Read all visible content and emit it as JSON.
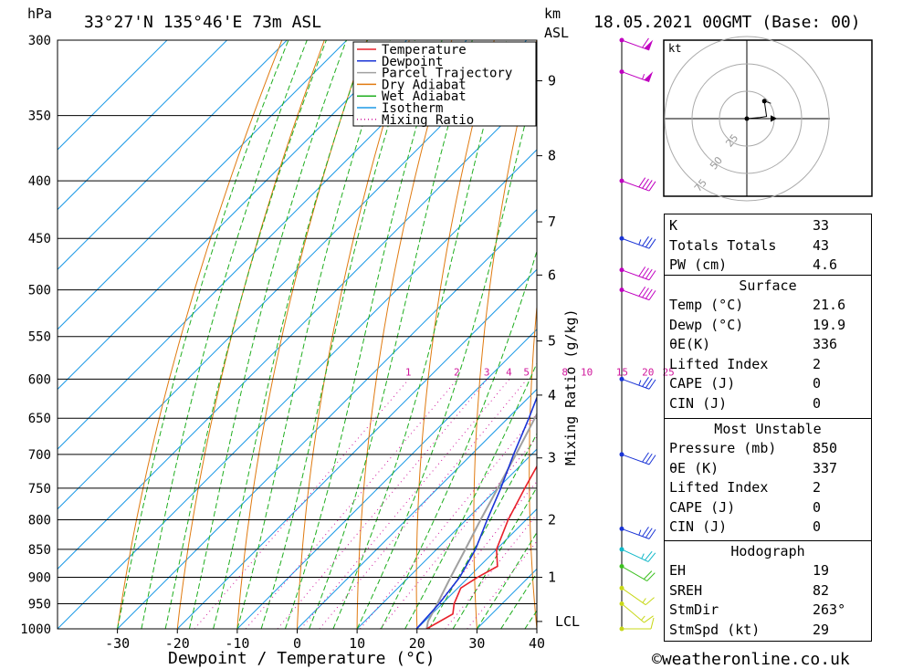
{
  "header": {
    "location": "33°27'N 135°46'E 73m ASL",
    "datetime": "18.05.2021 00GMT (Base: 00)",
    "hpa_label": "hPa",
    "km_label": "km",
    "asl_label": "ASL"
  },
  "footer": {
    "credit": "©weatheronline.co.uk"
  },
  "colors": {
    "temperature": "#e8202a",
    "dewpoint": "#1a34d6",
    "parcel": "#a0a0a0",
    "dry_adiabat": "#e07a10",
    "wet_adiabat": "#1fae1f",
    "isotherm": "#1d9ae6",
    "mixing_ratio": "#d0189c",
    "wind_magenta": "#c000c0",
    "wind_blue": "#1a34d6",
    "wind_cyan": "#10b8c8",
    "wind_green": "#3cc020",
    "wind_yellow": "#c8d818"
  },
  "chart_data": {
    "type": "line",
    "title": "",
    "xlabel": "Dewpoint / Temperature (°C)",
    "ylabel": "hPa",
    "right_axis_label": "Mixing Ratio (g/kg)",
    "xlim": [
      -40,
      40
    ],
    "ylim": [
      1000,
      300
    ],
    "x_ticks": [
      -30,
      -20,
      -10,
      0,
      10,
      20,
      30,
      40
    ],
    "pressure_levels": [
      300,
      350,
      400,
      450,
      500,
      550,
      600,
      650,
      700,
      750,
      800,
      850,
      900,
      950,
      1000
    ],
    "height_km_ticks": [
      {
        "label": "9",
        "p": 326
      },
      {
        "label": "8",
        "p": 380
      },
      {
        "label": "7",
        "p": 435
      },
      {
        "label": "6",
        "p": 485
      },
      {
        "label": "5",
        "p": 555
      },
      {
        "label": "4",
        "p": 620
      },
      {
        "label": "3",
        "p": 705
      },
      {
        "label": "2",
        "p": 800
      },
      {
        "label": "1",
        "p": 900
      },
      {
        "label": "LCL",
        "p": 985
      }
    ],
    "mixing_ratio_labels": [
      "1",
      "2",
      "3",
      "4",
      "5",
      "8",
      "10",
      "15",
      "20",
      "25"
    ],
    "mixing_ratio_values": [
      1,
      2,
      3,
      4,
      5,
      8,
      10,
      15,
      20,
      25
    ],
    "legend": [
      "Temperature",
      "Dewpoint",
      "Parcel Trajectory",
      "Dry Adiabat",
      "Wet Adiabat",
      "Isotherm",
      "Mixing Ratio"
    ],
    "series": [
      {
        "name": "Temperature",
        "points": [
          [
            1000,
            21.6
          ],
          [
            970,
            23.5
          ],
          [
            950,
            22
          ],
          [
            920,
            20.5
          ],
          [
            900,
            21.5
          ],
          [
            880,
            23
          ],
          [
            850,
            20
          ],
          [
            800,
            17
          ],
          [
            750,
            14.5
          ],
          [
            700,
            12
          ],
          [
            650,
            8.5
          ],
          [
            600,
            5
          ],
          [
            550,
            1
          ],
          [
            525,
            -1.5
          ],
          [
            500,
            -3.5
          ],
          [
            470,
            -5
          ],
          [
            455,
            -4.5
          ],
          [
            425,
            -8
          ],
          [
            400,
            -11.5
          ],
          [
            350,
            -20
          ],
          [
            300,
            -28
          ]
        ]
      },
      {
        "name": "Dewpoint",
        "points": [
          [
            1000,
            19.9
          ],
          [
            950,
            19.5
          ],
          [
            900,
            18.5
          ],
          [
            850,
            16.5
          ],
          [
            800,
            13.5
          ],
          [
            750,
            10.5
          ],
          [
            700,
            7
          ],
          [
            650,
            3.5
          ],
          [
            600,
            -0.5
          ],
          [
            550,
            -5.5
          ],
          [
            548,
            -8
          ],
          [
            540,
            -6.5
          ],
          [
            520,
            -8
          ],
          [
            515,
            -11
          ],
          [
            505,
            -14
          ],
          [
            498,
            -12
          ],
          [
            490,
            -8
          ],
          [
            487,
            -12
          ],
          [
            478,
            -13
          ],
          [
            470,
            -10
          ],
          [
            455,
            -24
          ],
          [
            400,
            -15
          ],
          [
            350,
            -4
          ],
          [
            342,
            -5
          ],
          [
            340,
            -9
          ],
          [
            320,
            -4
          ],
          [
            300,
            -12
          ]
        ]
      },
      {
        "name": "Parcel Trajectory",
        "points": [
          [
            1000,
            21.6
          ],
          [
            985,
            20.6
          ],
          [
            950,
            19.2
          ],
          [
            900,
            17
          ],
          [
            850,
            14.8
          ],
          [
            800,
            12.4
          ],
          [
            750,
            10
          ],
          [
            700,
            7.4
          ],
          [
            650,
            4.5
          ],
          [
            600,
            1.2
          ],
          [
            550,
            -2.6
          ],
          [
            500,
            -7
          ],
          [
            450,
            -12.2
          ],
          [
            400,
            -18.5
          ],
          [
            350,
            -26
          ],
          [
            320,
            -31.5
          ],
          [
            300,
            -35.5
          ]
        ]
      }
    ]
  },
  "hodograph": {
    "unit_label": "kt",
    "ring_labels": [
      "25",
      "50",
      "75"
    ],
    "points": [
      [
        0,
        0
      ],
      [
        12,
        1
      ],
      [
        18,
        2
      ],
      [
        16,
        16
      ],
      [
        22,
        14
      ]
    ]
  },
  "winds": [
    {
      "p": 300,
      "dir": 250,
      "spd": 60,
      "color": "#c000c0"
    },
    {
      "p": 320,
      "dir": 250,
      "spd": 55,
      "color": "#c000c0"
    },
    {
      "p": 400,
      "dir": 250,
      "spd": 40,
      "color": "#c000c0"
    },
    {
      "p": 450,
      "dir": 250,
      "spd": 35,
      "color": "#1a34d6"
    },
    {
      "p": 480,
      "dir": 250,
      "spd": 40,
      "color": "#c000c0"
    },
    {
      "p": 500,
      "dir": 250,
      "spd": 40,
      "color": "#c000c0"
    },
    {
      "p": 600,
      "dir": 250,
      "spd": 35,
      "color": "#1a34d6"
    },
    {
      "p": 700,
      "dir": 250,
      "spd": 30,
      "color": "#1a34d6"
    },
    {
      "p": 815,
      "dir": 250,
      "spd": 35,
      "color": "#1a34d6"
    },
    {
      "p": 850,
      "dir": 245,
      "spd": 25,
      "color": "#10b8c8"
    },
    {
      "p": 880,
      "dir": 240,
      "spd": 20,
      "color": "#3cc020"
    },
    {
      "p": 920,
      "dir": 235,
      "spd": 15,
      "color": "#c8d818"
    },
    {
      "p": 950,
      "dir": 230,
      "spd": 15,
      "color": "#c8d818"
    },
    {
      "p": 1000,
      "dir": 270,
      "spd": 10,
      "color": "#c8d818"
    }
  ],
  "indices": {
    "general": [
      {
        "label": "K",
        "value": "33"
      },
      {
        "label": "Totals Totals",
        "value": "43"
      },
      {
        "label": "PW (cm)",
        "value": "4.6"
      }
    ],
    "surface": {
      "title": "Surface",
      "rows": [
        {
          "label": "Temp (°C)",
          "value": "21.6"
        },
        {
          "label": "Dewp (°C)",
          "value": "19.9"
        },
        {
          "label": "θE(K)",
          "value": "336"
        },
        {
          "label": "Lifted Index",
          "value": "2"
        },
        {
          "label": "CAPE (J)",
          "value": "0"
        },
        {
          "label": "CIN (J)",
          "value": "0"
        }
      ]
    },
    "most_unstable": {
      "title": "Most Unstable",
      "rows": [
        {
          "label": "Pressure (mb)",
          "value": "850"
        },
        {
          "label": "θE (K)",
          "value": "337"
        },
        {
          "label": "Lifted Index",
          "value": "2"
        },
        {
          "label": "CAPE (J)",
          "value": "0"
        },
        {
          "label": "CIN (J)",
          "value": "0"
        }
      ]
    },
    "hodograph_stats": {
      "title": "Hodograph",
      "rows": [
        {
          "label": "EH",
          "value": "19"
        },
        {
          "label": "SREH",
          "value": "82"
        },
        {
          "label": "StmDir",
          "value": "263°"
        },
        {
          "label": "StmSpd (kt)",
          "value": "29"
        }
      ]
    }
  }
}
